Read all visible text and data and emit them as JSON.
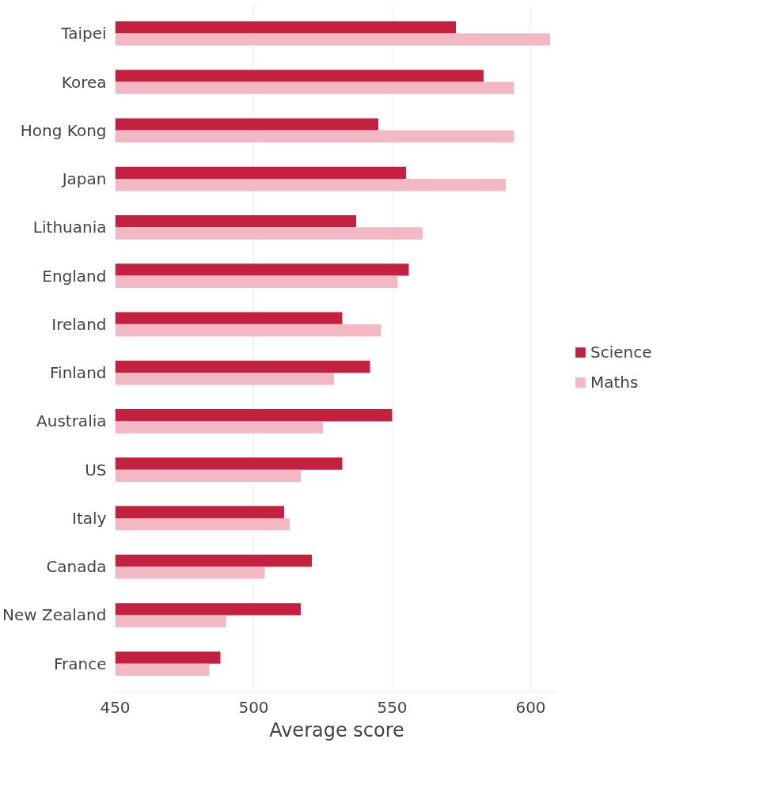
{
  "chart_data": {
    "type": "bar",
    "orientation": "horizontal",
    "xlabel": "Average score",
    "categories": [
      "Taipei",
      "Korea",
      "Hong Kong",
      "Japan",
      "Lithuania",
      "England",
      "Ireland",
      "Finland",
      "Australia",
      "US",
      "Italy",
      "Canada",
      "New Zealand",
      "France"
    ],
    "series": [
      {
        "name": "Science",
        "color": "#c4203f",
        "values": [
          573,
          583,
          545,
          555,
          537,
          556,
          532,
          542,
          550,
          532,
          511,
          521,
          517,
          488
        ]
      },
      {
        "name": "Maths",
        "color": "#f2b8c4",
        "values": [
          607,
          594,
          594,
          591,
          561,
          552,
          546,
          529,
          525,
          517,
          513,
          504,
          490,
          484
        ]
      }
    ],
    "xlim": [
      450,
      610
    ],
    "xticks": [
      450,
      500,
      550,
      600
    ],
    "grid": "x",
    "legend": "right"
  }
}
